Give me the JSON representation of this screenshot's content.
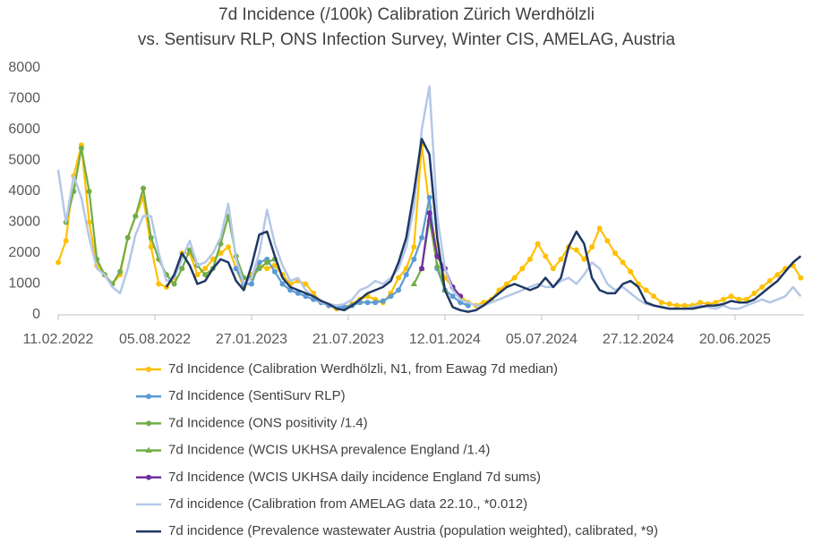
{
  "chart_data": {
    "type": "line",
    "title": [
      "7d Incidence (/100k) Calibration Zürich Werdhölzli",
      "vs. Sentisurv RLP, ONS Infection Survey, Winter CIS, AMELAG, Austria"
    ],
    "x": [
      "11.02.2022",
      "25.02.2022",
      "11.03.2022",
      "25.03.2022",
      "08.04.2022",
      "22.04.2022",
      "06.05.2022",
      "20.05.2022",
      "03.06.2022",
      "17.06.2022",
      "01.07.2022",
      "15.07.2022",
      "29.07.2022",
      "12.08.2022",
      "26.08.2022",
      "09.09.2022",
      "23.09.2022",
      "07.10.2022",
      "21.10.2022",
      "04.11.2022",
      "18.11.2022",
      "02.12.2022",
      "16.12.2022",
      "30.12.2022",
      "13.01.2023",
      "27.01.2023",
      "10.02.2023",
      "24.02.2023",
      "10.03.2023",
      "24.03.2023",
      "07.04.2023",
      "21.04.2023",
      "05.05.2023",
      "19.05.2023",
      "02.06.2023",
      "16.06.2023",
      "30.06.2023",
      "14.07.2023",
      "28.07.2023",
      "11.08.2023",
      "25.08.2023",
      "08.09.2023",
      "22.09.2023",
      "06.10.2023",
      "20.10.2023",
      "03.11.2023",
      "17.11.2023",
      "01.12.2023",
      "15.12.2023",
      "29.12.2023",
      "12.01.2024",
      "26.01.2024",
      "09.02.2024",
      "23.02.2024",
      "08.03.2024",
      "22.03.2024",
      "05.04.2024",
      "19.04.2024",
      "03.05.2024",
      "17.05.2024",
      "31.05.2024",
      "14.06.2024",
      "28.06.2024",
      "12.07.2024",
      "26.07.2024",
      "09.08.2024",
      "23.08.2024",
      "06.09.2024",
      "20.09.2024",
      "04.10.2024",
      "18.10.2024",
      "01.11.2024",
      "15.11.2024",
      "29.11.2024",
      "13.12.2024",
      "27.12.2024",
      "10.01.2025",
      "24.01.2025",
      "07.02.2025",
      "21.02.2025",
      "07.03.2025",
      "21.03.2025",
      "04.04.2025",
      "18.04.2025",
      "02.05.2025",
      "16.05.2025",
      "30.05.2025",
      "13.06.2025",
      "27.06.2025",
      "11.07.2025",
      "25.07.2025",
      "08.08.2025",
      "22.08.2025",
      "05.09.2025",
      "19.09.2025",
      "03.10.2025",
      "17.10.2025"
    ],
    "xlim": [
      "11.02.2022",
      "23.10.2025"
    ],
    "xticks": [
      "11.02.2022",
      "05.08.2022",
      "27.01.2023",
      "21.07.2023",
      "12.01.2024",
      "05.07.2024",
      "27.12.2024",
      "20.06.2025"
    ],
    "ylim": [
      0,
      8000
    ],
    "yticks": [
      0,
      1000,
      2000,
      3000,
      4000,
      5000,
      6000,
      7000,
      8000
    ],
    "series": [
      {
        "name": "7d Incidence (Calibration Werdhölzli, N1, from Eawag 7d median)",
        "color": "#ffc000",
        "marker": "circle",
        "values": [
          1700,
          2400,
          4500,
          5500,
          3000,
          1600,
          1300,
          1000,
          1300,
          2500,
          3200,
          3800,
          2200,
          1000,
          900,
          1200,
          2000,
          2000,
          1300,
          1500,
          1800,
          2000,
          2200,
          1500,
          900,
          1300,
          1600,
          1500,
          1600,
          1300,
          1000,
          1100,
          1000,
          700,
          400,
          300,
          200,
          250,
          350,
          500,
          600,
          500,
          400,
          700,
          1200,
          1500,
          2200,
          5500,
          3500,
          2000,
          1200,
          900,
          600,
          400,
          300,
          400,
          500,
          800,
          1000,
          1200,
          1500,
          1800,
          2300,
          1900,
          1500,
          1800,
          2200,
          2100,
          1800,
          2200,
          2800,
          2400,
          2000,
          1700,
          1400,
          1000,
          800,
          600,
          400,
          350,
          300,
          300,
          300,
          400,
          350,
          400,
          500,
          600,
          500,
          500,
          700,
          900,
          1100,
          1300,
          1500,
          1600,
          1200
        ]
      },
      {
        "name": "7d Incidence (SentiSurv RLP)",
        "color": "#5b9bd5",
        "marker": "circle",
        "values": [
          null,
          null,
          null,
          null,
          null,
          null,
          null,
          null,
          null,
          null,
          null,
          null,
          null,
          null,
          null,
          null,
          null,
          null,
          null,
          null,
          null,
          null,
          null,
          1500,
          1000,
          1000,
          1700,
          1800,
          1400,
          1000,
          800,
          700,
          600,
          500,
          400,
          300,
          250,
          250,
          300,
          400,
          400,
          400,
          450,
          600,
          800,
          1300,
          1800,
          2500,
          3800,
          1500,
          800,
          600,
          400,
          300,
          null,
          null,
          null,
          null,
          null,
          null,
          null,
          null,
          null,
          null,
          null,
          null,
          null,
          null,
          null,
          null,
          null,
          null,
          null,
          null,
          null,
          null,
          null,
          null,
          null,
          null,
          null,
          null,
          null,
          null,
          null,
          null,
          null,
          null,
          null,
          null,
          null,
          null,
          null,
          null,
          null,
          null,
          null
        ]
      },
      {
        "name": "7d Incidence (ONS positivity /1.4)",
        "color": "#70ad47",
        "marker": "circle",
        "values": [
          null,
          3000,
          4000,
          5400,
          4000,
          1800,
          1300,
          1000,
          1400,
          2500,
          3200,
          4100,
          2500,
          1800,
          1300,
          1000,
          1500,
          2100,
          1600,
          1300,
          1500,
          2300,
          3200,
          1900,
          1200,
          1200,
          1500,
          1700,
          1800,
          null,
          null,
          null,
          null,
          null,
          null,
          null,
          null,
          null,
          null,
          null,
          null,
          null,
          null,
          null,
          null,
          null,
          null,
          null,
          null,
          null,
          null,
          null,
          null,
          null,
          null,
          null,
          null,
          null,
          null,
          null,
          null,
          null,
          null,
          null,
          null,
          null,
          null,
          null,
          null,
          null,
          null,
          null,
          null,
          null,
          null,
          null,
          null,
          null,
          null,
          null,
          null,
          null,
          null,
          null,
          null,
          null,
          null,
          null,
          null,
          null,
          null,
          null,
          null,
          null,
          null,
          null,
          null
        ]
      },
      {
        "name": "7d Incidence (WCIS UKHSA prevalence England /1.4)",
        "color": "#70ad47",
        "marker": "triangle",
        "values": [
          null,
          null,
          null,
          null,
          null,
          null,
          null,
          null,
          null,
          null,
          null,
          null,
          null,
          null,
          null,
          null,
          null,
          null,
          null,
          null,
          null,
          null,
          null,
          null,
          null,
          null,
          null,
          null,
          null,
          null,
          null,
          null,
          null,
          null,
          null,
          null,
          null,
          null,
          null,
          null,
          null,
          null,
          null,
          null,
          null,
          null,
          1000,
          1500,
          3100,
          1600,
          800,
          null,
          null,
          null,
          null,
          null,
          null,
          null,
          null,
          null,
          null,
          null,
          null,
          null,
          null,
          null,
          null,
          null,
          null,
          null,
          null,
          null,
          null,
          null,
          null,
          null,
          null,
          null,
          null,
          null,
          null,
          null,
          null,
          null,
          null,
          null,
          null,
          null,
          null,
          null,
          null,
          null,
          null,
          null,
          null,
          null,
          null
        ]
      },
      {
        "name": "7d Incidence (WCIS UKHSA daily incidence England 7d sums)",
        "color": "#7030a0",
        "marker": "circle",
        "values": [
          null,
          null,
          null,
          null,
          null,
          null,
          null,
          null,
          null,
          null,
          null,
          null,
          null,
          null,
          null,
          null,
          null,
          null,
          null,
          null,
          null,
          null,
          null,
          null,
          null,
          null,
          null,
          null,
          null,
          null,
          null,
          null,
          null,
          null,
          null,
          null,
          null,
          null,
          null,
          null,
          null,
          null,
          null,
          null,
          null,
          null,
          null,
          1500,
          3300,
          1900,
          1500,
          900,
          600,
          null,
          null,
          null,
          null,
          null,
          null,
          null,
          null,
          null,
          null,
          null,
          null,
          null,
          null,
          null,
          null,
          null,
          null,
          null,
          null,
          null,
          null,
          null,
          null,
          null,
          null,
          null,
          null,
          null,
          null,
          null,
          null,
          null,
          null,
          null,
          null,
          null,
          null,
          null,
          null,
          null,
          null,
          null,
          null
        ]
      },
      {
        "name": "7d incidence (Calibration from AMELAG data 22.10., *0.012)",
        "color": "#b4c7e7",
        "marker": "none",
        "values": [
          4700,
          3000,
          4500,
          3800,
          2500,
          1500,
          1300,
          900,
          700,
          1500,
          2600,
          3200,
          3200,
          2000,
          1100,
          1200,
          1800,
          2400,
          1600,
          1700,
          2000,
          2500,
          3600,
          1800,
          1000,
          1200,
          2000,
          3400,
          2300,
          1600,
          1100,
          1200,
          800,
          600,
          400,
          350,
          300,
          350,
          500,
          800,
          900,
          1100,
          1000,
          1200,
          1500,
          2200,
          3500,
          6000,
          7400,
          3200,
          1500,
          800,
          500,
          400,
          300,
          300,
          400,
          500,
          600,
          700,
          800,
          900,
          1000,
          900,
          900,
          1100,
          1200,
          1000,
          1300,
          1700,
          1500,
          1000,
          800,
          900,
          700,
          500,
          350,
          300,
          250,
          200,
          200,
          200,
          250,
          300,
          250,
          200,
          300,
          200,
          200,
          300,
          400,
          500,
          400,
          500,
          600,
          900,
          600
        ]
      },
      {
        "name": "7d incidence (Prevalence wastewater Austria (population weighted), calibrated, *9)",
        "color": "#203864",
        "marker": "none",
        "values": [
          null,
          null,
          null,
          null,
          null,
          null,
          null,
          null,
          null,
          null,
          null,
          null,
          null,
          null,
          900,
          1300,
          2000,
          1600,
          1000,
          1100,
          1500,
          1800,
          1700,
          1100,
          800,
          1600,
          2600,
          2700,
          1900,
          1200,
          900,
          800,
          700,
          600,
          450,
          350,
          200,
          150,
          300,
          500,
          700,
          800,
          900,
          1100,
          1700,
          2500,
          4000,
          5700,
          5200,
          2500,
          800,
          250,
          150,
          100,
          150,
          300,
          500,
          700,
          900,
          1000,
          900,
          800,
          900,
          1200,
          900,
          1200,
          2200,
          2700,
          2300,
          1200,
          800,
          700,
          700,
          1000,
          1100,
          900,
          400,
          300,
          250,
          200,
          200,
          200,
          200,
          250,
          300,
          300,
          350,
          450,
          400,
          400,
          500,
          700,
          900,
          1100,
          1400,
          1700,
          1900
        ]
      }
    ]
  }
}
